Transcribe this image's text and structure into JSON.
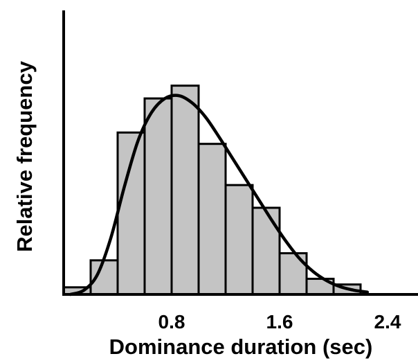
{
  "chart_data": {
    "type": "bar",
    "title": "",
    "xlabel": "Dominance duration (sec)",
    "ylabel": "Relative frequency",
    "xlim": [
      0,
      2.8
    ],
    "ylim": [
      0,
      1.0
    ],
    "x_ticks": [
      {
        "value": 0.8,
        "label": "0.8"
      },
      {
        "value": 1.6,
        "label": "1.6"
      },
      {
        "value": 2.4,
        "label": "2.4"
      }
    ],
    "y_ticks": [],
    "bin_width": 0.2,
    "bins": [
      {
        "start": 0.0,
        "end": 0.2,
        "value": 0.025
      },
      {
        "start": 0.2,
        "end": 0.4,
        "value": 0.12
      },
      {
        "start": 0.4,
        "end": 0.6,
        "value": 0.57
      },
      {
        "start": 0.6,
        "end": 0.8,
        "value": 0.69
      },
      {
        "start": 0.8,
        "end": 1.0,
        "value": 0.735
      },
      {
        "start": 1.0,
        "end": 1.2,
        "value": 0.53
      },
      {
        "start": 1.2,
        "end": 1.4,
        "value": 0.385
      },
      {
        "start": 1.4,
        "end": 1.6,
        "value": 0.305
      },
      {
        "start": 1.6,
        "end": 1.8,
        "value": 0.145
      },
      {
        "start": 1.8,
        "end": 2.0,
        "value": 0.055
      },
      {
        "start": 2.0,
        "end": 2.2,
        "value": 0.035
      }
    ],
    "fit_curve": {
      "x": [
        0.05,
        0.15,
        0.25,
        0.35,
        0.45,
        0.55,
        0.65,
        0.75,
        0.85,
        0.95,
        1.05,
        1.15,
        1.25,
        1.35,
        1.45,
        1.55,
        1.65,
        1.75,
        1.85,
        1.95,
        2.05,
        2.15,
        2.25
      ],
      "y": [
        0.0,
        0.015,
        0.07,
        0.2,
        0.38,
        0.54,
        0.64,
        0.69,
        0.7,
        0.675,
        0.625,
        0.555,
        0.48,
        0.405,
        0.33,
        0.255,
        0.185,
        0.125,
        0.08,
        0.048,
        0.027,
        0.015,
        0.008
      ]
    },
    "grid": false,
    "legend": "none"
  }
}
